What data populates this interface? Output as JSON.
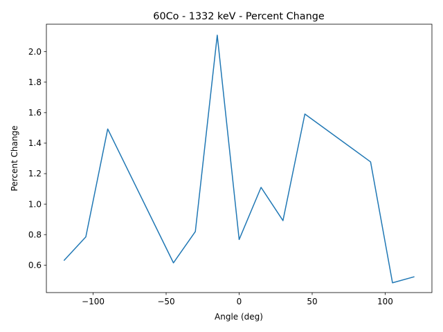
{
  "chart_data": {
    "type": "line",
    "title": "60Co - 1332 keV - Percent Change",
    "xlabel": "Angle (deg)",
    "ylabel": "Percent Change",
    "xlim": [
      -132,
      132
    ],
    "ylim": [
      0.42,
      2.18
    ],
    "xticks": [
      -100,
      -50,
      0,
      50,
      100
    ],
    "xtick_labels": [
      "−100",
      "−50",
      "0",
      "50",
      "100"
    ],
    "yticks": [
      0.6,
      0.8,
      1.0,
      1.2,
      1.4,
      1.6,
      1.8,
      2.0
    ],
    "ytick_labels": [
      "0.6",
      "0.8",
      "1.0",
      "1.2",
      "1.4",
      "1.6",
      "1.8",
      "2.0"
    ],
    "grid": false,
    "series": [
      {
        "color": "#1f77b4",
        "x": [
          -120,
          -105,
          -90,
          -45,
          -30,
          -15,
          0,
          15,
          30,
          45,
          90,
          105,
          120
        ],
        "y": [
          0.63,
          0.785,
          1.493,
          0.615,
          0.82,
          2.108,
          0.768,
          1.11,
          0.892,
          1.591,
          1.277,
          0.484,
          0.524
        ]
      }
    ]
  }
}
